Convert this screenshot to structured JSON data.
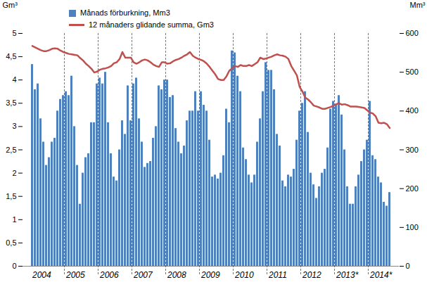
{
  "chart_data": {
    "type": "bar",
    "ylabel": "Gm³",
    "y2label": "Mm³",
    "legend": "top-left",
    "grid": false,
    "categories": [
      "2004",
      null,
      null,
      null,
      null,
      null,
      null,
      null,
      null,
      null,
      null,
      null,
      "2005",
      null,
      null,
      null,
      null,
      null,
      null,
      null,
      null,
      null,
      null,
      null,
      "2006",
      null,
      null,
      null,
      null,
      null,
      null,
      null,
      null,
      null,
      null,
      null,
      "2007",
      null,
      null,
      null,
      null,
      null,
      null,
      null,
      null,
      null,
      null,
      null,
      "2008",
      null,
      null,
      null,
      null,
      null,
      null,
      null,
      null,
      null,
      null,
      null,
      "2009",
      null,
      null,
      null,
      null,
      null,
      null,
      null,
      null,
      null,
      null,
      null,
      "2010",
      null,
      null,
      null,
      null,
      null,
      null,
      null,
      null,
      null,
      null,
      null,
      "2011",
      null,
      null,
      null,
      null,
      null,
      null,
      null,
      null,
      null,
      null,
      null,
      "2012",
      null,
      null,
      null,
      null,
      null,
      null,
      null,
      null,
      null,
      null,
      null,
      "2013*",
      null,
      null,
      null,
      null,
      null,
      null,
      null,
      null,
      null,
      null,
      null,
      "2014*",
      null,
      null,
      null,
      null,
      null,
      null,
      null
    ],
    "ylim": [
      0,
      5
    ],
    "yticks": [
      0,
      {
        "value": 0.5,
        "label": "0,5"
      },
      1,
      {
        "value": 1.5,
        "label": "1,5"
      },
      2,
      {
        "value": 2.5,
        "label": "2,5"
      },
      3,
      {
        "value": 3.5,
        "label": "3,5"
      },
      4,
      {
        "value": 4.5,
        "label": "4,5"
      },
      5
    ],
    "y2lim": [
      0,
      600
    ],
    "y2ticks": [
      0,
      100,
      200,
      300,
      400,
      500,
      600
    ],
    "series": [
      {
        "name": "Månads förburkning, Mm3",
        "type": "bar",
        "axis": "y2",
        "color": "#4f81bd",
        "values": [
          520,
          455,
          470,
          380,
          320,
          260,
          280,
          320,
          330,
          400,
          430,
          440,
          450,
          440,
          490,
          360,
          260,
          160,
          240,
          280,
          290,
          370,
          370,
          470,
          485,
          470,
          500,
          370,
          290,
          230,
          220,
          300,
          375,
          340,
          465,
          375,
          470,
          485,
          380,
          320,
          255,
          265,
          270,
          330,
          360,
          465,
          455,
          480,
          480,
          435,
          440,
          355,
          320,
          290,
          310,
          375,
          400,
          400,
          450,
          400,
          450,
          415,
          400,
          325,
          230,
          235,
          225,
          240,
          285,
          405,
          370,
          555,
          550,
          490,
          450,
          305,
          275,
          235,
          215,
          235,
          320,
          380,
          450,
          525,
          505,
          505,
          455,
          340,
          310,
          220,
          205,
          235,
          230,
          250,
          325,
          400,
          420,
          450,
          345,
          240,
          210,
          175,
          205,
          240,
          250,
          305,
          405,
          425,
          415,
          440,
          390,
          300,
          205,
          160,
          160,
          205,
          235,
          270,
          300,
          325,
          425,
          285,
          275,
          230,
          215,
          165,
          155,
          190
        ]
      },
      {
        "name": "12 månaders glidande summa, Gm3",
        "type": "line",
        "axis": "y",
        "color": "#c0504d",
        "values": [
          4.73,
          4.7,
          4.67,
          4.64,
          4.62,
          4.62,
          4.64,
          4.67,
          4.68,
          4.67,
          4.63,
          4.6,
          4.58,
          4.56,
          4.55,
          4.54,
          4.53,
          4.47,
          4.42,
          4.35,
          4.3,
          4.24,
          4.16,
          4.18,
          4.22,
          4.24,
          4.25,
          4.27,
          4.3,
          4.36,
          4.38,
          4.45,
          4.6,
          4.48,
          4.48,
          4.48,
          4.38,
          4.35,
          4.38,
          4.42,
          4.44,
          4.42,
          4.38,
          4.33,
          4.3,
          4.28,
          4.38,
          4.38,
          4.35,
          4.36,
          4.4,
          4.43,
          4.45,
          4.48,
          4.52,
          4.55,
          4.6,
          4.52,
          4.48,
          4.45,
          4.43,
          4.4,
          4.35,
          4.28,
          4.2,
          4.12,
          4.02,
          4.0,
          4.0,
          4.08,
          4.2,
          4.25,
          4.3,
          4.28,
          4.32,
          4.3,
          4.3,
          4.32,
          4.3,
          4.34,
          4.38,
          4.48,
          4.45,
          4.46,
          4.48,
          4.5,
          4.53,
          4.55,
          4.53,
          4.52,
          4.5,
          4.45,
          4.3,
          4.2,
          4.1,
          3.85,
          3.75,
          3.62,
          3.58,
          3.52,
          3.45,
          3.43,
          3.41,
          3.38,
          3.38,
          3.4,
          3.42,
          3.45,
          3.48,
          3.5,
          3.47,
          3.48,
          3.46,
          3.43,
          3.43,
          3.43,
          3.42,
          3.41,
          3.4,
          3.35,
          3.3,
          3.28,
          3.22,
          3.08,
          3.07,
          3.08,
          3.05,
          2.97
        ]
      }
    ]
  }
}
